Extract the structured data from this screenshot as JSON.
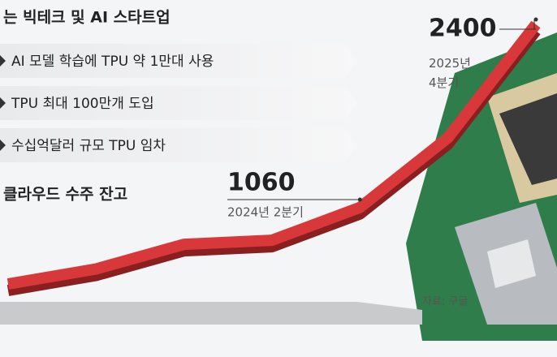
{
  "chart_data": {
    "type": "line",
    "title": "는 빅테크 및 AI 스타트업",
    "bullets": [
      "AI 모델 학습에 TPU 약 1만대 사용",
      "TPU 최대 100만개 도입",
      "수십억달러 규모 TPU 임차"
    ],
    "series_title": "클라우드 수주 잔고",
    "categories": [
      null,
      null,
      null,
      null,
      "2024년 2분기",
      null,
      "2025년 4분기"
    ],
    "values": [
      500,
      610,
      790,
      820,
      1060,
      1570,
      2400
    ],
    "color": "#d9383a",
    "source": "자료: 구글"
  }
}
